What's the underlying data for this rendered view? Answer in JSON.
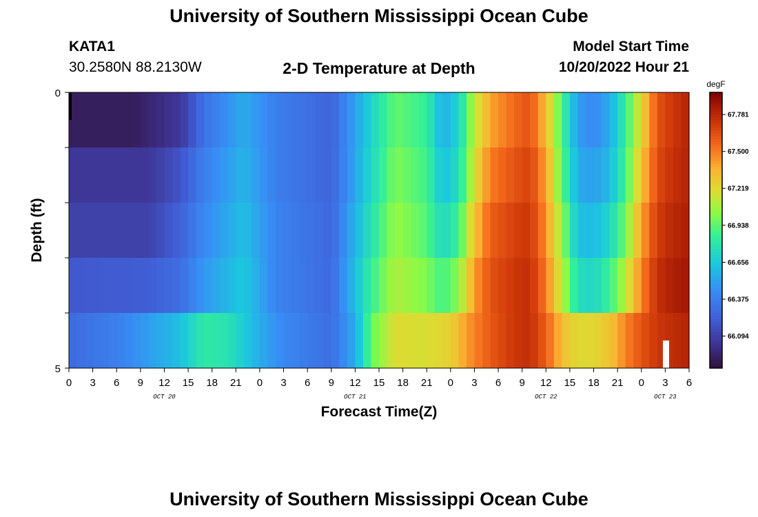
{
  "header": {
    "title": "University of Southern Mississippi Ocean Cube",
    "station_name": "KATA1",
    "station_coords": "30.2580N  88.2130W",
    "model_start_label": "Model Start Time",
    "model_start_value": "10/20/2022 Hour 21"
  },
  "footer": {
    "title": "University of Southern Mississippi Ocean Cube"
  },
  "chart_data": {
    "type": "heatmap",
    "title": "2-D Temperature at Depth",
    "xlabel": "Forecast Time(Z)",
    "ylabel": "Depth (ft)",
    "colorbar_unit": "degF",
    "colorbar_ticks": [
      "67.781",
      "67.500",
      "67.219",
      "66.938",
      "66.656",
      "66.375",
      "66.094"
    ],
    "colorbar_range": [
      65.85,
      67.95
    ],
    "x_ticks": [
      "0",
      "3",
      "6",
      "9",
      "12",
      "15",
      "18",
      "21",
      "0",
      "3",
      "6",
      "9",
      "12",
      "15",
      "18",
      "21",
      "0",
      "3",
      "6",
      "9",
      "12",
      "15",
      "18",
      "21",
      "0",
      "3",
      "6"
    ],
    "date_labels": [
      {
        "label": "OCT 20",
        "at_tick": 4
      },
      {
        "label": "OCT 21",
        "at_tick": 12
      },
      {
        "label": "OCT 22",
        "at_tick": 20
      },
      {
        "label": "OCT 23",
        "at_tick": 25
      }
    ],
    "x_range_hours": [
      0,
      78
    ],
    "y_ticks": [
      "0",
      "5"
    ],
    "y_range_ft": [
      0,
      5
    ],
    "depth_levels": 5,
    "time_steps": 78,
    "time_step_hours": 1,
    "row_keyframes": [
      [
        [
          0,
          65.92
        ],
        [
          8,
          65.92
        ],
        [
          14,
          66.05
        ],
        [
          17,
          66.32
        ],
        [
          22,
          66.55
        ],
        [
          26,
          66.38
        ],
        [
          33,
          66.25
        ],
        [
          38,
          66.7
        ],
        [
          41,
          66.95
        ],
        [
          45,
          66.85
        ],
        [
          47,
          66.55
        ],
        [
          49,
          66.7
        ],
        [
          51,
          67.12
        ],
        [
          53,
          67.4
        ],
        [
          56,
          67.55
        ],
        [
          58,
          67.62
        ],
        [
          60,
          67.32
        ],
        [
          62,
          66.9
        ],
        [
          64,
          66.5
        ],
        [
          66,
          66.42
        ],
        [
          68,
          66.55
        ],
        [
          70,
          66.85
        ],
        [
          72,
          67.22
        ],
        [
          74,
          67.62
        ],
        [
          76,
          67.72
        ],
        [
          78,
          67.8
        ]
      ],
      [
        [
          0,
          66.05
        ],
        [
          10,
          66.05
        ],
        [
          14,
          66.18
        ],
        [
          17,
          66.38
        ],
        [
          22,
          66.58
        ],
        [
          26,
          66.38
        ],
        [
          33,
          66.25
        ],
        [
          38,
          66.72
        ],
        [
          41,
          67.0
        ],
        [
          45,
          66.88
        ],
        [
          47,
          66.62
        ],
        [
          49,
          66.75
        ],
        [
          51,
          67.18
        ],
        [
          53,
          67.5
        ],
        [
          56,
          67.62
        ],
        [
          58,
          67.68
        ],
        [
          60,
          67.4
        ],
        [
          62,
          66.95
        ],
        [
          64,
          66.55
        ],
        [
          66,
          66.5
        ],
        [
          68,
          66.6
        ],
        [
          70,
          66.88
        ],
        [
          72,
          67.3
        ],
        [
          74,
          67.65
        ],
        [
          76,
          67.75
        ],
        [
          78,
          67.8
        ]
      ],
      [
        [
          0,
          66.1
        ],
        [
          10,
          66.1
        ],
        [
          14,
          66.24
        ],
        [
          17,
          66.42
        ],
        [
          22,
          66.62
        ],
        [
          26,
          66.4
        ],
        [
          33,
          66.27
        ],
        [
          38,
          66.78
        ],
        [
          41,
          67.05
        ],
        [
          45,
          66.92
        ],
        [
          47,
          66.72
        ],
        [
          49,
          66.86
        ],
        [
          51,
          67.3
        ],
        [
          53,
          67.58
        ],
        [
          56,
          67.68
        ],
        [
          58,
          67.72
        ],
        [
          60,
          67.45
        ],
        [
          62,
          67.05
        ],
        [
          64,
          66.62
        ],
        [
          66,
          66.6
        ],
        [
          68,
          66.72
        ],
        [
          70,
          66.98
        ],
        [
          72,
          67.4
        ],
        [
          74,
          67.7
        ],
        [
          76,
          67.78
        ],
        [
          78,
          67.82
        ]
      ],
      [
        [
          0,
          66.2
        ],
        [
          10,
          66.22
        ],
        [
          14,
          66.3
        ],
        [
          17,
          66.48
        ],
        [
          22,
          66.66
        ],
        [
          26,
          66.4
        ],
        [
          33,
          66.28
        ],
        [
          38,
          66.85
        ],
        [
          41,
          67.1
        ],
        [
          45,
          67.0
        ],
        [
          47,
          66.88
        ],
        [
          49,
          67.02
        ],
        [
          51,
          67.42
        ],
        [
          53,
          67.62
        ],
        [
          56,
          67.72
        ],
        [
          58,
          67.75
        ],
        [
          60,
          67.5
        ],
        [
          62,
          67.12
        ],
        [
          64,
          66.75
        ],
        [
          66,
          66.72
        ],
        [
          68,
          66.86
        ],
        [
          70,
          67.12
        ],
        [
          72,
          67.48
        ],
        [
          74,
          67.75
        ],
        [
          76,
          67.82
        ],
        [
          78,
          67.85
        ]
      ],
      [
        [
          0,
          66.28
        ],
        [
          6,
          66.38
        ],
        [
          10,
          66.5
        ],
        [
          14,
          66.62
        ],
        [
          17,
          66.82
        ],
        [
          20,
          66.78
        ],
        [
          24,
          66.55
        ],
        [
          27,
          66.42
        ],
        [
          33,
          66.3
        ],
        [
          36,
          66.55
        ],
        [
          38,
          66.95
        ],
        [
          41,
          67.2
        ],
        [
          45,
          67.18
        ],
        [
          48,
          67.25
        ],
        [
          50,
          67.42
        ],
        [
          53,
          67.6
        ],
        [
          56,
          67.72
        ],
        [
          58,
          67.75
        ],
        [
          60,
          67.58
        ],
        [
          62,
          67.32
        ],
        [
          64,
          67.2
        ],
        [
          66,
          67.22
        ],
        [
          68,
          67.3
        ],
        [
          70,
          67.48
        ],
        [
          72,
          67.62
        ],
        [
          74,
          67.72
        ],
        [
          76,
          67.76
        ],
        [
          78,
          67.8
        ]
      ]
    ]
  }
}
